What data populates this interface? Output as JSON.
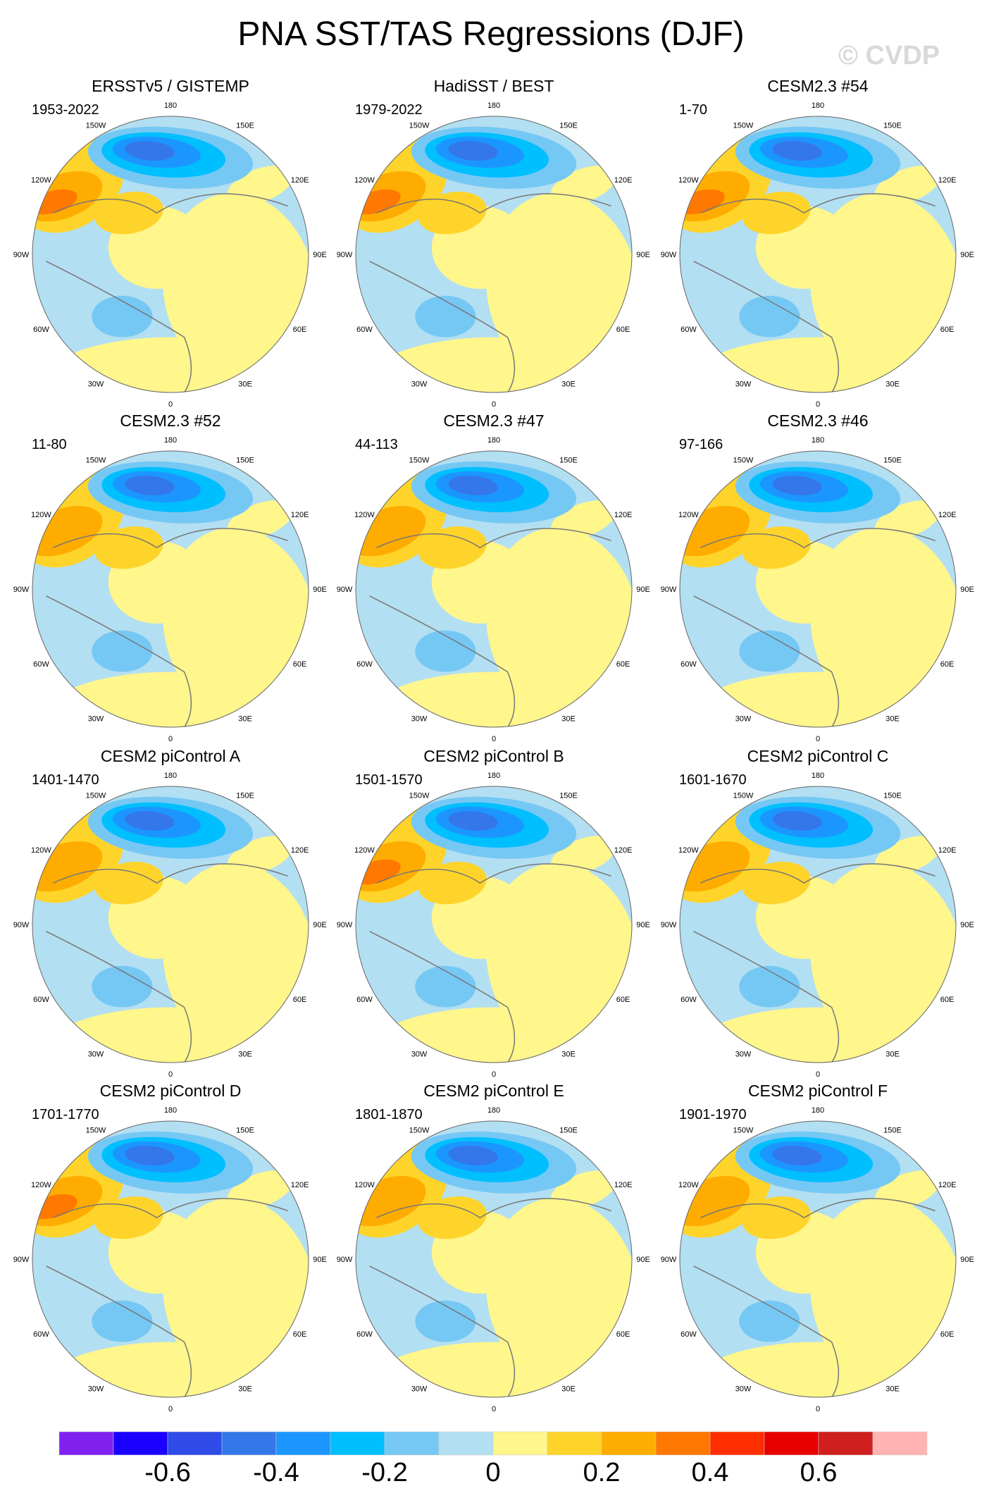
{
  "title": "PNA SST/TAS Regressions (DJF)",
  "watermark": "© CVDP",
  "longitude_labels": [
    {
      "lon": 180,
      "text": "180"
    },
    {
      "lon": 150,
      "text": "150E"
    },
    {
      "lon": 120,
      "text": "120E"
    },
    {
      "lon": 90,
      "text": "90E"
    },
    {
      "lon": 60,
      "text": "60E"
    },
    {
      "lon": 30,
      "text": "30E"
    },
    {
      "lon": 0,
      "text": "0"
    },
    {
      "lon": -30,
      "text": "30W"
    },
    {
      "lon": -60,
      "text": "60W"
    },
    {
      "lon": -90,
      "text": "90W"
    },
    {
      "lon": -120,
      "text": "120W"
    },
    {
      "lon": -150,
      "text": "150W"
    }
  ],
  "panels": [
    {
      "title": "ERSSTv5 / GISTEMP",
      "years": "1953-2022"
    },
    {
      "title": "HadiSST / BEST",
      "years": "1979-2022"
    },
    {
      "title": "CESM2.3 #54",
      "years": "1-70"
    },
    {
      "title": "CESM2.3 #52",
      "years": "11-80"
    },
    {
      "title": "CESM2.3 #47",
      "years": "44-113"
    },
    {
      "title": "CESM2.3 #46",
      "years": "97-166"
    },
    {
      "title": "CESM2 piControl A",
      "years": "1401-1470"
    },
    {
      "title": "CESM2 piControl B",
      "years": "1501-1570"
    },
    {
      "title": "CESM2 piControl C",
      "years": "1601-1670"
    },
    {
      "title": "CESM2 piControl D",
      "years": "1701-1770"
    },
    {
      "title": "CESM2 piControl E",
      "years": "1801-1870"
    },
    {
      "title": "CESM2 piControl F",
      "years": "1901-1970"
    }
  ],
  "chart_data": {
    "type": "heatmap",
    "projection": "north polar stereographic",
    "colorbar": {
      "colors": [
        "#8021f0",
        "#1a00ff",
        "#2f4be8",
        "#3477ea",
        "#1c96ff",
        "#00bfff",
        "#76c8f4",
        "#b3dff2",
        "#fff68c",
        "#ffd42a",
        "#ffac00",
        "#ff7800",
        "#ff2e00",
        "#e80000",
        "#cf1f1f",
        "#ffb3b3"
      ],
      "tick_values": [
        -0.6,
        -0.4,
        -0.2,
        0,
        0.2,
        0.4,
        0.6
      ],
      "tick_labels": [
        "-0.6",
        "-0.4",
        "-0.2",
        "0",
        "0.2",
        "0.4",
        "0.6"
      ],
      "range": [
        -0.8,
        0.8
      ]
    }
  }
}
